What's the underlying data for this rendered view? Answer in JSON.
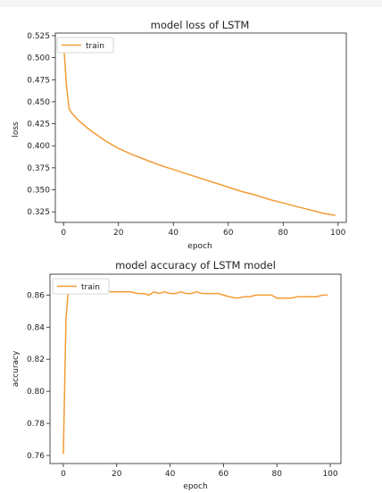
{
  "colors": {
    "line": "#f39c34",
    "axis": "#222222",
    "background": "#ffffff"
  },
  "chart_data": [
    {
      "type": "line",
      "title": "model loss of LSTM",
      "xlabel": "epoch",
      "ylabel": "loss",
      "xlim": [
        -3,
        103
      ],
      "ylim": [
        0.313,
        0.528
      ],
      "xticks": [
        0,
        20,
        40,
        60,
        80,
        100
      ],
      "yticks": [
        0.325,
        0.35,
        0.375,
        0.4,
        0.425,
        0.45,
        0.475,
        0.5,
        0.525
      ],
      "xtick_labels": [
        "0",
        "20",
        "40",
        "60",
        "80",
        "100"
      ],
      "ytick_labels": [
        "0.325",
        "0.350",
        "0.375",
        "0.400",
        "0.425",
        "0.450",
        "0.475",
        "0.500",
        "0.525"
      ],
      "legend": {
        "position": "top-left",
        "entries": [
          "train"
        ]
      },
      "series": [
        {
          "name": "train",
          "x": [
            0,
            1,
            2,
            3,
            5,
            8,
            10,
            15,
            20,
            25,
            30,
            35,
            40,
            45,
            50,
            55,
            60,
            65,
            70,
            75,
            80,
            85,
            90,
            95,
            99
          ],
          "values": [
            0.518,
            0.47,
            0.442,
            0.437,
            0.43,
            0.422,
            0.417,
            0.406,
            0.397,
            0.39,
            0.384,
            0.378,
            0.373,
            0.368,
            0.363,
            0.358,
            0.353,
            0.348,
            0.344,
            0.339,
            0.335,
            0.331,
            0.327,
            0.323,
            0.321
          ]
        }
      ]
    },
    {
      "type": "line",
      "title": "model accuracy of LSTM model",
      "xlabel": "epoch",
      "ylabel": "accuracy",
      "xlim": [
        -5,
        104
      ],
      "ylim": [
        0.755,
        0.873
      ],
      "xticks": [
        0,
        20,
        40,
        60,
        80,
        100
      ],
      "yticks": [
        0.76,
        0.78,
        0.8,
        0.82,
        0.84,
        0.86
      ],
      "xtick_labels": [
        "0",
        "20",
        "40",
        "60",
        "80",
        "100"
      ],
      "ytick_labels": [
        "0.76",
        "0.78",
        "0.80",
        "0.82",
        "0.84",
        "0.86"
      ],
      "legend": {
        "position": "top-left",
        "entries": [
          "train"
        ]
      },
      "series": [
        {
          "name": "train",
          "x": [
            0,
            1,
            2,
            3,
            5,
            8,
            10,
            12,
            15,
            18,
            20,
            22,
            25,
            28,
            30,
            32,
            34,
            36,
            38,
            40,
            42,
            44,
            46,
            48,
            50,
            52,
            55,
            58,
            60,
            62,
            65,
            68,
            70,
            72,
            75,
            78,
            80,
            82,
            85,
            88,
            90,
            92,
            95,
            97,
            99
          ],
          "values": [
            0.761,
            0.845,
            0.866,
            0.863,
            0.864,
            0.863,
            0.863,
            0.862,
            0.863,
            0.862,
            0.862,
            0.862,
            0.862,
            0.861,
            0.861,
            0.86,
            0.862,
            0.861,
            0.862,
            0.861,
            0.861,
            0.862,
            0.861,
            0.861,
            0.862,
            0.861,
            0.861,
            0.861,
            0.86,
            0.859,
            0.858,
            0.859,
            0.859,
            0.86,
            0.86,
            0.86,
            0.858,
            0.858,
            0.858,
            0.859,
            0.859,
            0.859,
            0.859,
            0.86,
            0.86
          ]
        }
      ]
    }
  ]
}
